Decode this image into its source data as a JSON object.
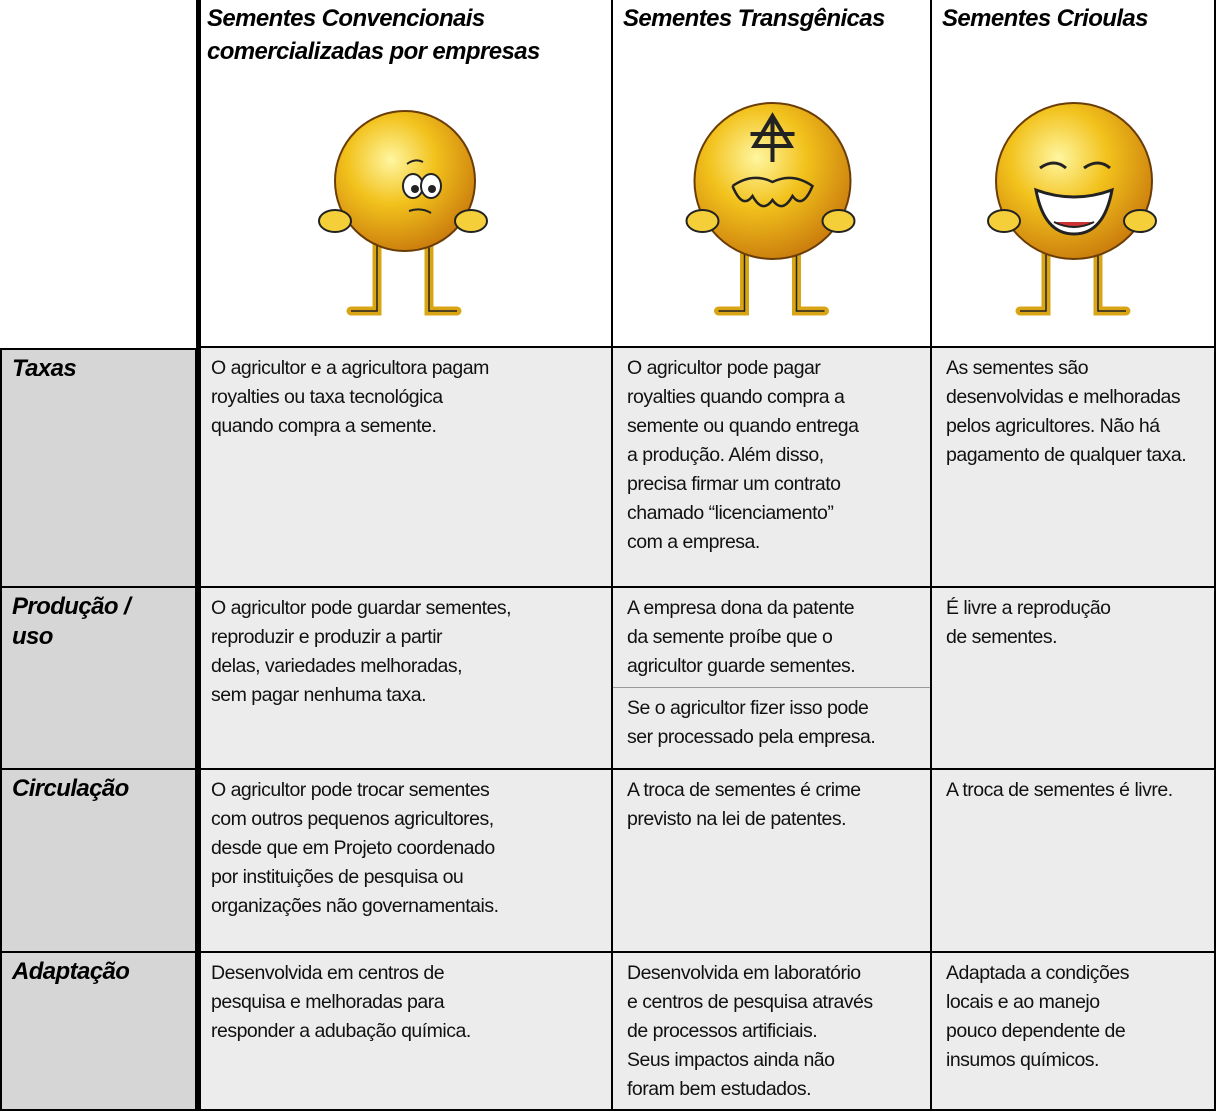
{
  "table": {
    "columns": [
      {
        "lines": [
          "Sementes Convencionais",
          "comercializadas por empresas"
        ]
      },
      {
        "lines": [
          "Sementes Transgênicas"
        ]
      },
      {
        "lines": [
          "Sementes Crioulas"
        ]
      }
    ],
    "rows": [
      {
        "label": [
          "Taxas"
        ],
        "cells": [
          [
            [
              "O agricultor e a agricultora pagam",
              "royalties ou taxa tecnológica",
              "quando compra a semente."
            ]
          ],
          [
            [
              "O agricultor pode pagar",
              "royalties quando compra a",
              "semente ou quando entrega",
              "a produção. Além disso,",
              "precisa firmar um contrato",
              "chamado “licenciamento”",
              "com a empresa."
            ]
          ],
          [
            [
              "As sementes são",
              "desenvolvidas e melhoradas",
              "pelos agricultores. Não há",
              "pagamento de qualquer taxa."
            ]
          ]
        ]
      },
      {
        "label": [
          "Produção /",
          "uso"
        ],
        "cells": [
          [
            [
              "O agricultor pode guardar sementes,",
              "reproduzir e produzir a partir",
              "delas, variedades melhoradas,",
              "sem pagar nenhuma taxa."
            ]
          ],
          [
            [
              "A empresa dona da patente",
              "da semente proíbe que o",
              "agricultor guarde sementes."
            ],
            [
              "Se o agricultor fizer isso pode",
              "ser processado pela empresa."
            ]
          ],
          [
            [
              "É livre a reprodução",
              "de sementes."
            ]
          ]
        ]
      },
      {
        "label": [
          "Circulação"
        ],
        "cells": [
          [
            [
              "O agricultor pode trocar sementes",
              "com outros pequenos agricultores,",
              "desde que em Projeto coordenado",
              "por instituições de pesquisa ou",
              "organizações não governamentais."
            ]
          ],
          [
            [
              "A troca de sementes é crime",
              "previsto na lei de patentes."
            ]
          ],
          [
            [
              "A troca de sementes é livre."
            ]
          ]
        ]
      },
      {
        "label": [
          "Adaptação"
        ],
        "cells": [
          [
            [
              "Desenvolvida em centros de",
              "pesquisa e melhoradas para",
              "responder a adubação química."
            ]
          ],
          [
            [
              "Desenvolvida em laboratório",
              "e centros de pesquisa através",
              "de processos artificiais.",
              "Seus impactos ainda não",
              "foram bem estudados."
            ]
          ],
          [
            [
              "Adaptada a condições",
              "locais e ao manejo",
              "pouco dependente de",
              "insumos químicos."
            ]
          ]
        ]
      }
    ]
  }
}
